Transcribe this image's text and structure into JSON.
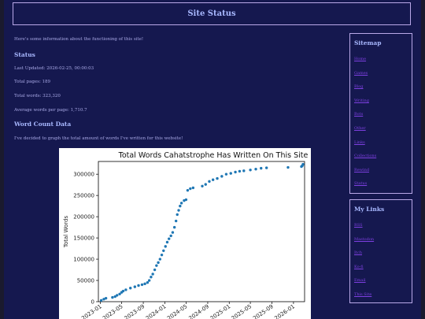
{
  "header": {
    "title": "Site Status"
  },
  "main": {
    "intro": "Here's some information about the functioning of this site!",
    "status_heading": "Status",
    "last_updated": "Last Updated: 2026-02-25, 00:00:03",
    "total_pages": "Total pages: 189",
    "total_words": "Total words: 323,320",
    "avg_words": "Average words per page: 1,710.7",
    "wordcount_heading": "Word Count Data",
    "wordcount_text": "I've decided to graph the total amount of words I've written for this website!"
  },
  "sidebar": {
    "sitemap": {
      "title": "Sitemap",
      "links": [
        "Home",
        "Games",
        "Blog",
        "Writing",
        "Bots",
        "Other",
        "Links",
        "Collections",
        "Rewind",
        "Status"
      ]
    },
    "mylinks": {
      "title": "My Links",
      "links": [
        "RSS",
        "Mastodon",
        "Itch",
        "Ko-fi",
        "Email",
        "This Site"
      ]
    }
  },
  "colors": {
    "page_bg": "#15184f",
    "accent": "#a8b8ff",
    "link": "#7d3fe0",
    "border": "#b9a8e8",
    "series": "#1f77b4"
  },
  "chart_data": {
    "type": "scatter",
    "title": "Total Words Cahatstrophe Has Written On This Site",
    "ylabel": "Total Words",
    "xlabel": "",
    "grid": false,
    "ylim": [
      0,
      330000
    ],
    "xlim": [
      "2022-12-20",
      "2026-03-05"
    ],
    "xticks": [
      "2023-01",
      "2023-05",
      "2023-09",
      "2024-01",
      "2024-05",
      "2024-09",
      "2025-01",
      "2025-05",
      "2025-09",
      "2026-01"
    ],
    "yticks": [
      0,
      50000,
      100000,
      150000,
      200000,
      250000,
      300000
    ],
    "ytick_labels": [
      "0",
      "50000",
      "100000",
      "150000",
      "200000",
      "250000",
      "300000"
    ],
    "series": [
      {
        "points": [
          [
            "2023-01-05",
            3000
          ],
          [
            "2023-01-20",
            6000
          ],
          [
            "2023-02-01",
            8000
          ],
          [
            "2023-03-10",
            10000
          ],
          [
            "2023-03-25",
            12000
          ],
          [
            "2023-04-05",
            15000
          ],
          [
            "2023-04-20",
            18000
          ],
          [
            "2023-05-01",
            22000
          ],
          [
            "2023-05-10",
            25000
          ],
          [
            "2023-05-25",
            28000
          ],
          [
            "2023-06-20",
            32000
          ],
          [
            "2023-07-15",
            35000
          ],
          [
            "2023-08-05",
            38000
          ],
          [
            "2023-08-25",
            40000
          ],
          [
            "2023-09-10",
            42000
          ],
          [
            "2023-09-25",
            45000
          ],
          [
            "2023-10-05",
            50000
          ],
          [
            "2023-10-15",
            58000
          ],
          [
            "2023-10-25",
            65000
          ],
          [
            "2023-11-05",
            75000
          ],
          [
            "2023-11-15",
            85000
          ],
          [
            "2023-11-25",
            92000
          ],
          [
            "2023-12-05",
            100000
          ],
          [
            "2023-12-15",
            110000
          ],
          [
            "2023-12-25",
            120000
          ],
          [
            "2024-01-05",
            130000
          ],
          [
            "2024-01-15",
            140000
          ],
          [
            "2024-01-25",
            148000
          ],
          [
            "2024-02-05",
            155000
          ],
          [
            "2024-02-15",
            163000
          ],
          [
            "2024-02-25",
            175000
          ],
          [
            "2024-03-05",
            190000
          ],
          [
            "2024-03-12",
            205000
          ],
          [
            "2024-03-20",
            215000
          ],
          [
            "2024-03-28",
            225000
          ],
          [
            "2024-04-05",
            232000
          ],
          [
            "2024-04-20",
            238000
          ],
          [
            "2024-05-01",
            240000
          ],
          [
            "2024-05-10",
            262000
          ],
          [
            "2024-05-25",
            266000
          ],
          [
            "2024-06-10",
            268000
          ],
          [
            "2024-08-01",
            272000
          ],
          [
            "2024-08-20",
            276000
          ],
          [
            "2024-09-10",
            283000
          ],
          [
            "2024-10-01",
            287000
          ],
          [
            "2024-10-25",
            290000
          ],
          [
            "2024-11-20",
            295000
          ],
          [
            "2024-12-15",
            300000
          ],
          [
            "2025-01-10",
            302000
          ],
          [
            "2025-02-05",
            305000
          ],
          [
            "2025-03-01",
            307000
          ],
          [
            "2025-03-25",
            308000
          ],
          [
            "2025-05-01",
            310000
          ],
          [
            "2025-06-01",
            312000
          ],
          [
            "2025-07-01",
            314000
          ],
          [
            "2025-08-01",
            315000
          ],
          [
            "2025-12-01",
            316000
          ],
          [
            "2026-02-15",
            318000
          ],
          [
            "2026-02-20",
            320000
          ],
          [
            "2026-02-24",
            323320
          ]
        ]
      }
    ]
  }
}
